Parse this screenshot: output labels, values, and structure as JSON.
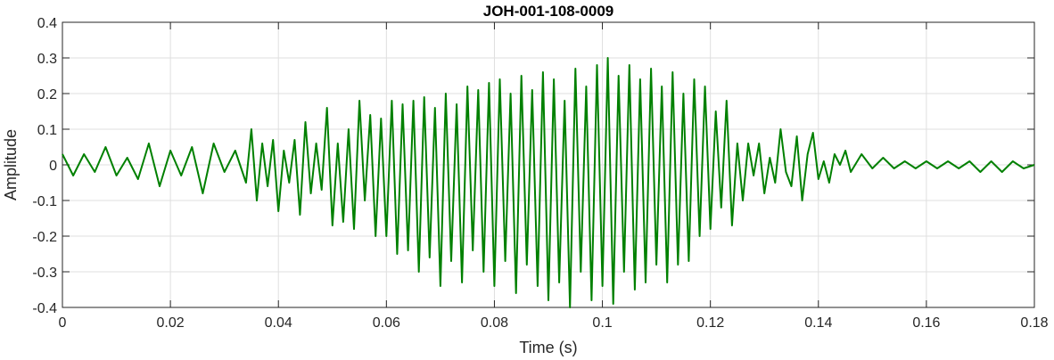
{
  "chart_data": {
    "type": "line",
    "title": "JOH-001-108-0009",
    "xlabel": "Time (s)",
    "ylabel": "Amplitude",
    "xlim": [
      0,
      0.18
    ],
    "ylim": [
      -0.4,
      0.4
    ],
    "grid": true,
    "x_ticks": [
      0,
      0.02,
      0.04,
      0.06,
      0.08,
      0.1,
      0.12,
      0.14,
      0.16,
      0.18
    ],
    "x_tick_labels": [
      "0",
      "0.02",
      "0.04",
      "0.06",
      "0.08",
      "0.1",
      "0.12",
      "0.14",
      "0.16",
      "0.18"
    ],
    "y_ticks": [
      -0.4,
      -0.3,
      -0.2,
      -0.1,
      0,
      0.1,
      0.2,
      0.3,
      0.4
    ],
    "y_tick_labels": [
      "-0.4",
      "-0.3",
      "-0.2",
      "-0.1",
      "0",
      "0.1",
      "0.2",
      "0.3",
      "0.4"
    ],
    "series": [
      {
        "color": "#008000",
        "x": [
          0,
          0.002,
          0.004,
          0.006,
          0.008,
          0.01,
          0.012,
          0.014,
          0.016,
          0.018,
          0.02,
          0.022,
          0.024,
          0.026,
          0.028,
          0.03,
          0.032,
          0.034,
          0.035,
          0.036,
          0.037,
          0.038,
          0.039,
          0.04,
          0.041,
          0.042,
          0.043,
          0.044,
          0.045,
          0.046,
          0.047,
          0.048,
          0.049,
          0.05,
          0.051,
          0.052,
          0.053,
          0.054,
          0.055,
          0.056,
          0.057,
          0.058,
          0.059,
          0.06,
          0.061,
          0.062,
          0.063,
          0.064,
          0.065,
          0.066,
          0.067,
          0.068,
          0.069,
          0.07,
          0.071,
          0.072,
          0.073,
          0.074,
          0.075,
          0.076,
          0.077,
          0.078,
          0.079,
          0.08,
          0.081,
          0.082,
          0.083,
          0.084,
          0.085,
          0.086,
          0.087,
          0.088,
          0.089,
          0.09,
          0.091,
          0.092,
          0.093,
          0.094,
          0.095,
          0.096,
          0.097,
          0.098,
          0.099,
          0.1,
          0.101,
          0.102,
          0.103,
          0.104,
          0.105,
          0.106,
          0.107,
          0.108,
          0.109,
          0.11,
          0.111,
          0.112,
          0.113,
          0.114,
          0.115,
          0.116,
          0.117,
          0.118,
          0.119,
          0.12,
          0.121,
          0.122,
          0.123,
          0.124,
          0.125,
          0.126,
          0.127,
          0.128,
          0.129,
          0.13,
          0.131,
          0.132,
          0.133,
          0.134,
          0.135,
          0.136,
          0.137,
          0.138,
          0.139,
          0.14,
          0.141,
          0.142,
          0.143,
          0.144,
          0.145,
          0.146,
          0.148,
          0.15,
          0.152,
          0.154,
          0.156,
          0.158,
          0.16,
          0.162,
          0.164,
          0.166,
          0.168,
          0.17,
          0.172,
          0.174,
          0.176,
          0.178,
          0.18
        ],
        "y": [
          0.03,
          -0.03,
          0.03,
          -0.02,
          0.05,
          -0.03,
          0.02,
          -0.04,
          0.06,
          -0.06,
          0.04,
          -0.03,
          0.05,
          -0.08,
          0.06,
          -0.02,
          0.04,
          -0.05,
          0.1,
          -0.1,
          0.06,
          -0.06,
          0.07,
          -0.13,
          0.04,
          -0.05,
          0.07,
          -0.14,
          0.12,
          -0.08,
          0.06,
          -0.07,
          0.16,
          -0.17,
          0.06,
          -0.16,
          0.1,
          -0.18,
          0.18,
          -0.1,
          0.14,
          -0.2,
          0.13,
          -0.2,
          0.18,
          -0.25,
          0.17,
          -0.24,
          0.18,
          -0.3,
          0.19,
          -0.26,
          0.16,
          -0.34,
          0.2,
          -0.27,
          0.17,
          -0.33,
          0.22,
          -0.24,
          0.21,
          -0.3,
          0.23,
          -0.34,
          0.24,
          -0.27,
          0.2,
          -0.36,
          0.25,
          -0.28,
          0.21,
          -0.34,
          0.26,
          -0.38,
          0.24,
          -0.33,
          0.18,
          -0.4,
          0.27,
          -0.3,
          0.22,
          -0.38,
          0.28,
          -0.34,
          0.3,
          -0.39,
          0.25,
          -0.3,
          0.28,
          -0.35,
          0.24,
          -0.33,
          0.27,
          -0.28,
          0.22,
          -0.33,
          0.26,
          -0.28,
          0.2,
          -0.27,
          0.24,
          -0.2,
          0.22,
          -0.18,
          0.15,
          -0.12,
          0.18,
          -0.17,
          0.06,
          -0.1,
          0.06,
          -0.03,
          0.06,
          -0.08,
          0.02,
          -0.05,
          0.1,
          -0.02,
          -0.06,
          0.08,
          -0.1,
          0.03,
          0.09,
          -0.04,
          0.01,
          -0.05,
          0.03,
          0.0,
          0.04,
          -0.02,
          0.03,
          -0.01,
          0.02,
          -0.01,
          0.01,
          -0.01,
          0.01,
          -0.01,
          0.01,
          -0.01,
          0.01,
          -0.02,
          0.01,
          -0.02,
          0.01,
          -0.01,
          0.0
        ]
      }
    ]
  }
}
